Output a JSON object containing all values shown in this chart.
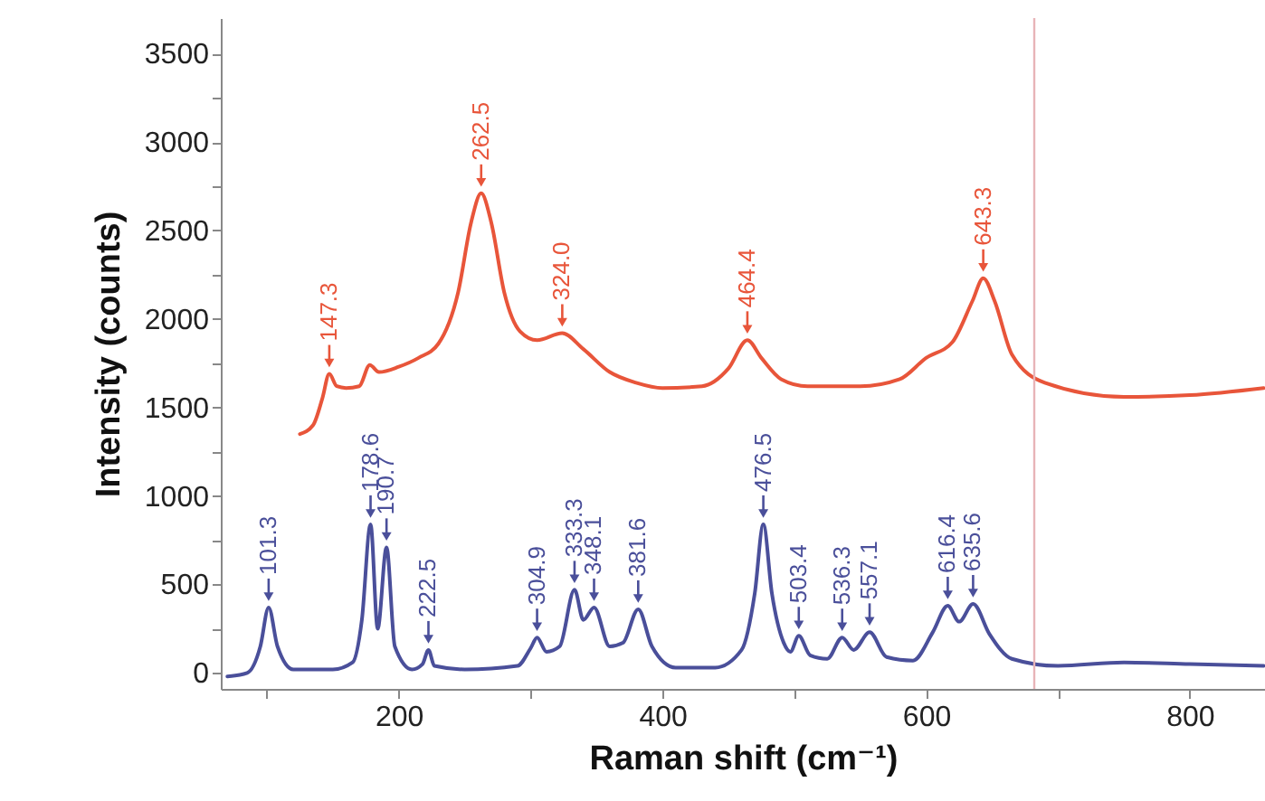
{
  "chart_data": {
    "type": "line",
    "xlabel": "Raman shift (cm⁻¹)",
    "ylabel": "Intensity (counts)",
    "xlim": [
      65,
      857
    ],
    "ylim": [
      -90,
      3700
    ],
    "xticks": [
      {
        "value": 100,
        "label": null
      },
      200,
      {
        "value": 300,
        "label": null
      },
      400,
      {
        "value": 500,
        "label": null
      },
      600,
      {
        "value": 700,
        "label": null
      },
      800
    ],
    "yticks": [
      0,
      {
        "value": 250,
        "label": null
      },
      500,
      {
        "value": 750,
        "label": null
      },
      1000,
      {
        "value": 1250,
        "label": null
      },
      1500,
      {
        "value": 1750,
        "label": null
      },
      2000,
      {
        "value": 2250,
        "label": null
      },
      2500,
      {
        "value": 2750,
        "label": null
      },
      3000,
      {
        "value": 3250,
        "label": null
      },
      3500
    ],
    "series": [
      {
        "color": "#e8553a",
        "x": [
          125,
          135,
          142,
          147.3,
          153,
          160,
          170,
          178,
          185,
          200,
          215,
          230,
          245,
          255,
          262.5,
          270,
          280,
          292,
          305,
          324,
          340,
          360,
          380,
          400,
          430,
          450,
          464.4,
          475,
          490,
          510,
          550,
          580,
          600,
          620,
          635,
          643.3,
          652,
          665,
          690,
          750,
          800,
          856
        ],
        "values": [
          1350,
          1400,
          1550,
          1690,
          1620,
          1610,
          1620,
          1740,
          1700,
          1730,
          1780,
          1860,
          2150,
          2550,
          2710,
          2550,
          2150,
          1930,
          1880,
          1920,
          1830,
          1700,
          1640,
          1610,
          1620,
          1720,
          1880,
          1780,
          1660,
          1620,
          1620,
          1660,
          1780,
          1870,
          2100,
          2230,
          2100,
          1800,
          1640,
          1560,
          1570,
          1610
        ]
      },
      {
        "color": "#4a4f9a",
        "x": [
          70,
          85,
          95,
          101.3,
          108,
          120,
          150,
          165,
          172,
          178.6,
          184,
          190.7,
          197,
          210,
          218,
          222.5,
          227,
          250,
          290,
          300,
          304.9,
          312,
          322,
          333.3,
          340,
          348.1,
          360,
          370,
          381.6,
          392,
          410,
          440,
          460,
          470,
          476.5,
          483,
          492,
          497,
          503.4,
          512,
          525,
          536.3,
          545,
          557.1,
          570,
          590,
          605,
          616.4,
          625,
          635.6,
          648,
          665,
          700,
          750,
          800,
          856
        ],
        "values": [
          -20,
          0,
          150,
          370,
          150,
          20,
          20,
          60,
          300,
          840,
          250,
          710,
          150,
          20,
          50,
          130,
          40,
          20,
          40,
          140,
          200,
          120,
          150,
          470,
          300,
          370,
          150,
          170,
          360,
          150,
          30,
          30,
          130,
          450,
          840,
          450,
          170,
          120,
          210,
          100,
          80,
          200,
          130,
          230,
          90,
          70,
          230,
          380,
          290,
          390,
          220,
          80,
          40,
          60,
          50,
          40
        ]
      }
    ],
    "ref_lines": [
      {
        "axis": "x",
        "value": 682,
        "color": "#e8b4b8"
      }
    ],
    "annotations": [
      {
        "text": "147.3",
        "x": 147.3,
        "y": 1690
      },
      {
        "text": "262.5",
        "x": 262.5,
        "y": 2710
      },
      {
        "text": "324.0",
        "x": 324,
        "y": 1920
      },
      {
        "text": "464.4",
        "x": 464.4,
        "y": 1880
      },
      {
        "text": "643.3",
        "x": 643.3,
        "y": 2230
      },
      {
        "text": "101.3",
        "x": 101.3,
        "y": 370
      },
      {
        "text": "178.6",
        "x": 178.6,
        "y": 840
      },
      {
        "text": "190.7",
        "x": 190.7,
        "y": 710
      },
      {
        "text": "222.5",
        "x": 222.5,
        "y": 130
      },
      {
        "text": "304.9",
        "x": 304.9,
        "y": 200
      },
      {
        "text": "333.3",
        "x": 333.3,
        "y": 470
      },
      {
        "text": "348.1",
        "x": 348.1,
        "y": 370
      },
      {
        "text": "381.6",
        "x": 381.6,
        "y": 360
      },
      {
        "text": "476.5",
        "x": 476.5,
        "y": 840
      },
      {
        "text": "503.4",
        "x": 503.4,
        "y": 210
      },
      {
        "text": "536.3",
        "x": 536.3,
        "y": 200
      },
      {
        "text": "557.1",
        "x": 557.1,
        "y": 230
      },
      {
        "text": "616.4",
        "x": 616.4,
        "y": 380
      },
      {
        "text": "635.6",
        "x": 635.6,
        "y": 390
      }
    ]
  }
}
